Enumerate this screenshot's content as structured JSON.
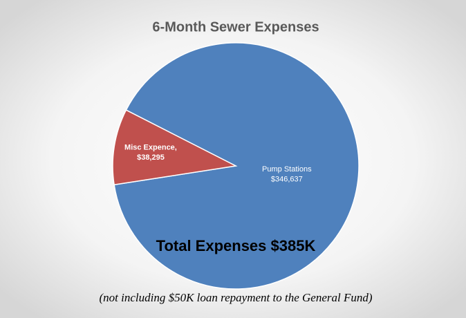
{
  "chart_data": {
    "type": "pie",
    "title": "6-Month Sewer Expenses",
    "categories": [
      "Pump Stations",
      "Misc Expence,"
    ],
    "values": [
      346637,
      38295
    ],
    "value_labels": [
      "$346,637",
      "$38,295"
    ],
    "colors": [
      "#4f81bd",
      "#c0504d"
    ],
    "start_angle": 297,
    "annotations": [
      "Total Expenses $385K",
      "(not including $50K loan repayment to the General Fund)"
    ]
  }
}
